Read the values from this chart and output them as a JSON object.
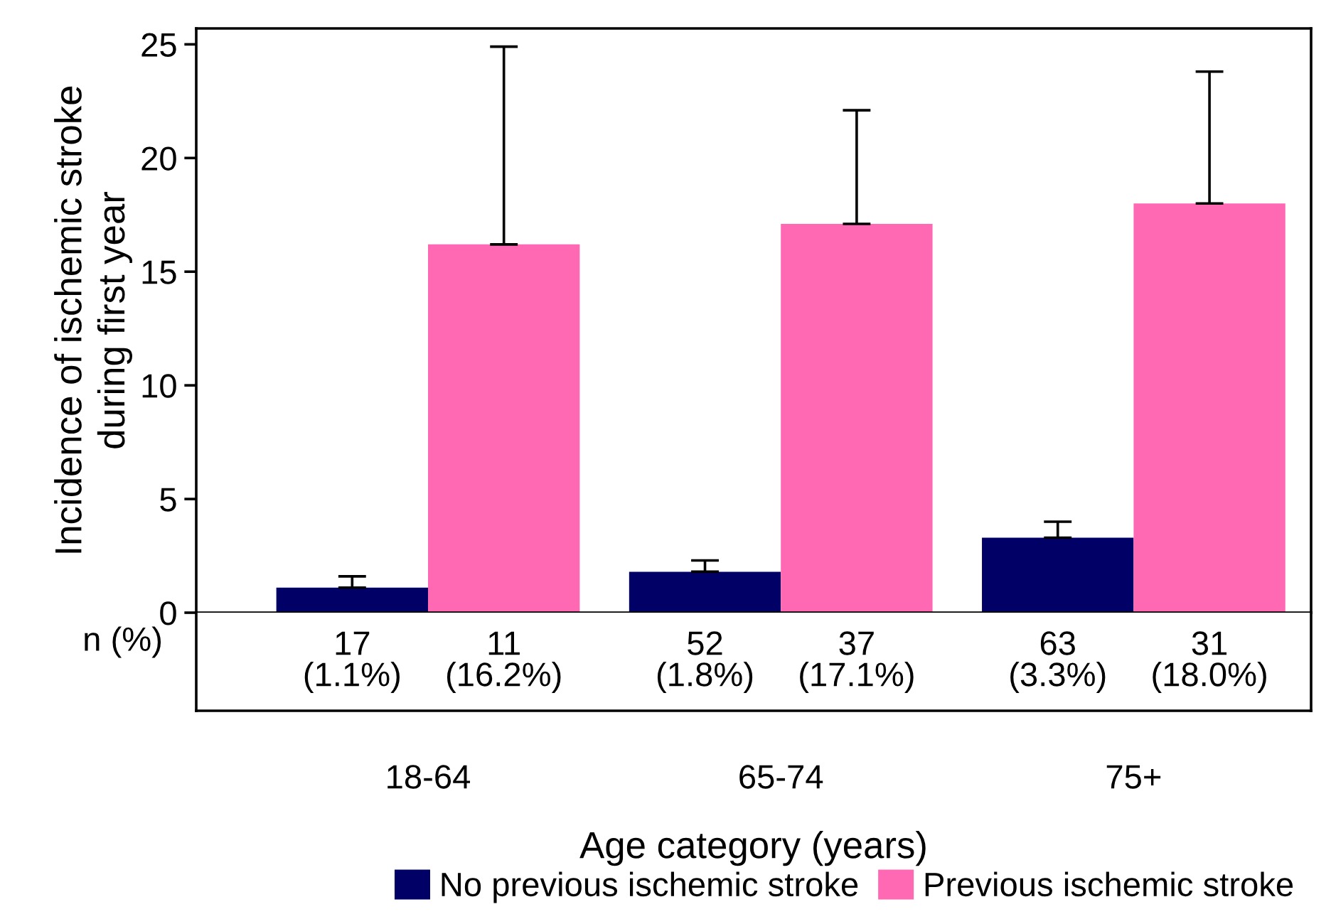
{
  "chart_data": {
    "type": "bar",
    "ylabel": "Incidence of ischemic stroke\nduring first year",
    "xlabel": "Age category (years)",
    "categories": [
      "18-64",
      "65-74",
      "75+"
    ],
    "series": [
      {
        "name": "No previous ischemic stroke",
        "color": "#000066",
        "values": [
          1.1,
          1.8,
          3.3
        ],
        "errors": [
          [
            1.1,
            1.6
          ],
          [
            1.8,
            2.3
          ],
          [
            3.3,
            4.0
          ]
        ],
        "value_labels": [
          "17\n(1.1%)",
          "52\n(1.8%)",
          "63\n(3.3%)"
        ]
      },
      {
        "name": "Previous ischemic stroke",
        "color": "#ff69b4",
        "values": [
          16.2,
          17.1,
          18.0
        ],
        "errors": [
          [
            16.2,
            24.9
          ],
          [
            17.1,
            22.1
          ],
          [
            18.0,
            23.8
          ]
        ],
        "value_labels": [
          "11\n(16.2%)",
          "37\n(17.1%)",
          "31\n(18.0%)"
        ]
      }
    ],
    "annotations": [
      "n (%)"
    ],
    "ylim": [
      0,
      25.7
    ],
    "yticks": [
      0,
      5,
      10,
      15,
      20,
      25
    ],
    "grid": false,
    "legend": "bottom"
  }
}
